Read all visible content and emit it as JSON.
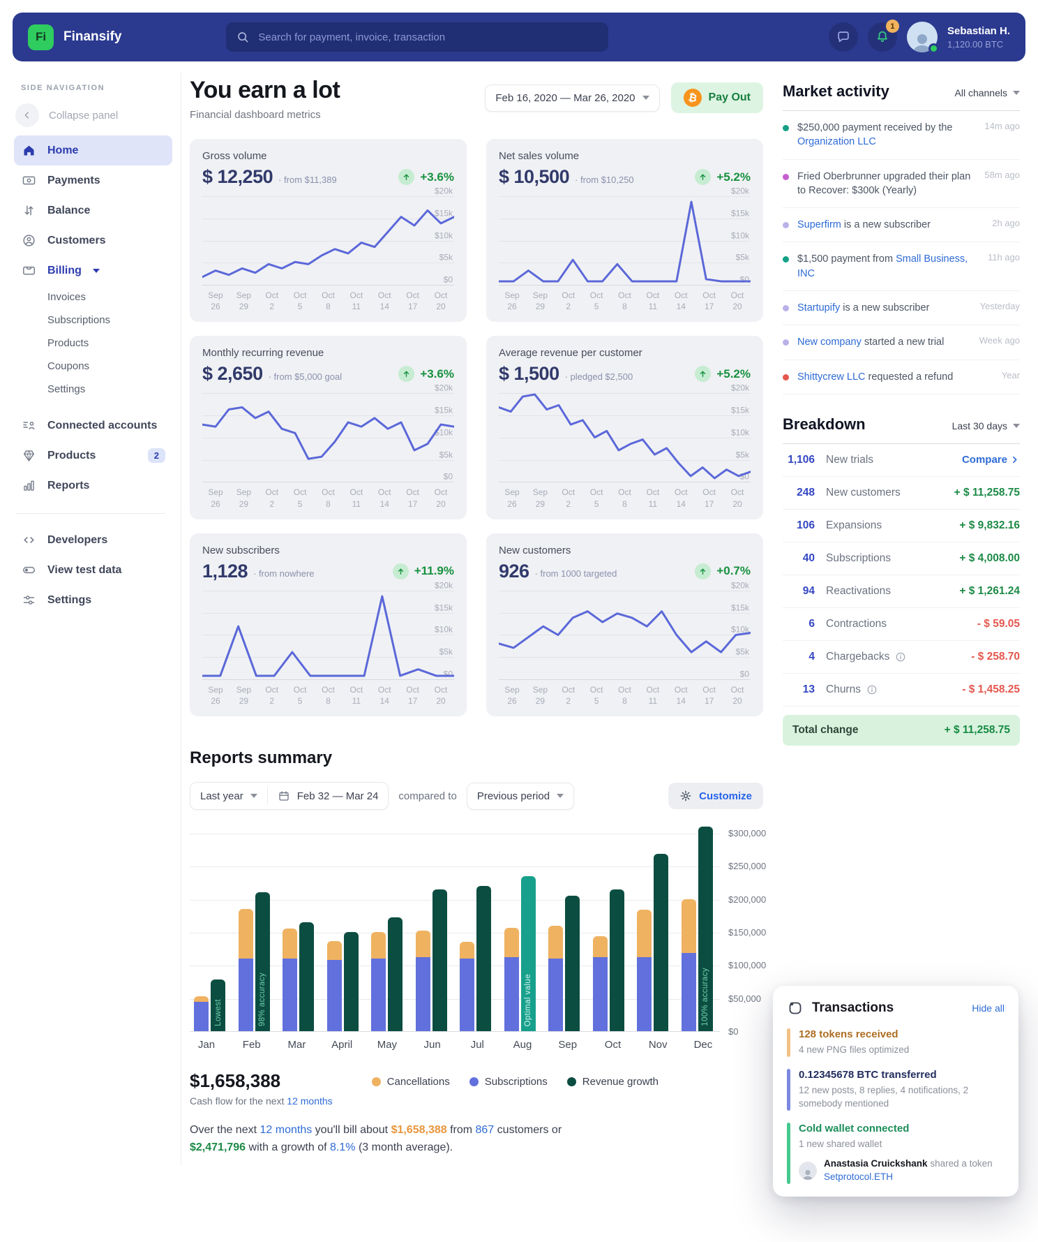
{
  "topbar": {
    "logo_text": "Fi",
    "brand": "Finansify",
    "search_placeholder": "Search for payment, invoice, transaction",
    "notification_count": "1",
    "user_name": "Sebastian H.",
    "user_balance": "1,120.00 BTC"
  },
  "sidebar": {
    "section_label": "Side navigation",
    "collapse": "Collapse panel",
    "home": "Home",
    "payments": "Payments",
    "balance": "Balance",
    "customers": "Customers",
    "billing": "Billing",
    "billing_children": [
      "Invoices",
      "Subscriptions",
      "Products",
      "Coupons",
      "Settings"
    ],
    "connected": "Connected accounts",
    "products": "Products",
    "products_badge": "2",
    "reports": "Reports",
    "developers": "Developers",
    "view_test_data": "View test data",
    "settings": "Settings"
  },
  "header": {
    "title": "You earn a lot",
    "subtitle": "Financial dashboard metrics",
    "date_range": "Feb 16, 2020 — Mar 26, 2020",
    "payout_label": "Pay Out",
    "payout_icon": "₿"
  },
  "metrics": {
    "cards": [
      {
        "title": "Gross volume",
        "value": "$ 12,250",
        "note": "· from $11,389",
        "change": "+3.6%"
      },
      {
        "title": "Net sales volume",
        "value": "$ 10,500",
        "note": "· from $10,250",
        "change": "+5.2%"
      },
      {
        "title": "Monthly recurring revenue",
        "value": "$ 2,650",
        "note": "· from $5,000 goal",
        "change": "+3.6%"
      },
      {
        "title": "Average revenue per customer",
        "value": "$ 1,500",
        "note": "· pledged $2,500",
        "change": "+5.2%"
      },
      {
        "title": "New subscribers",
        "value": "1,128",
        "note": "· from nowhere",
        "change": "+11.9%"
      },
      {
        "title": "New customers",
        "value": "926",
        "note": "· from 1000 targeted",
        "change": "+0.7%"
      }
    ]
  },
  "market": {
    "title": "Market activity",
    "filter": "All channels",
    "items": [
      {
        "dot": "#14a085",
        "pre": "$250,000 payment received by the ",
        "link": "Organization LLC",
        "post": "",
        "time": "14m ago"
      },
      {
        "dot": "#c65fd0",
        "pre": "Fried Oberbrunner upgraded their plan to Recover: $300k (Yearly)",
        "link": "",
        "post": "",
        "time": "58m ago"
      },
      {
        "dot": "#b9b2e8",
        "pre": "",
        "link": "Superfirm",
        "post": " is a new subscriber",
        "time": "2h ago"
      },
      {
        "dot": "#14a085",
        "pre": "$1,500 payment from ",
        "link": "Small Business, INC",
        "post": "",
        "time": "11h ago"
      },
      {
        "dot": "#b9b2e8",
        "pre": "",
        "link": "Startupify",
        "post": " is a new subscriber",
        "time": "Yesterday"
      },
      {
        "dot": "#b9b2e8",
        "pre": "",
        "link": "New company",
        "post": " started a new trial",
        "time": "Week ago"
      },
      {
        "dot": "#e4574e",
        "pre": "",
        "link": "Shittycrew LLC",
        "post": " requested a refund",
        "time": "Year"
      }
    ]
  },
  "breakdown": {
    "title": "Breakdown",
    "filter": "Last 30 days",
    "compare_label": "Compare",
    "rows": [
      {
        "count": "1,106",
        "label": "New trials",
        "amount": ""
      },
      {
        "count": "248",
        "label": "New customers",
        "amount": "+ $ 11,258.75"
      },
      {
        "count": "106",
        "label": "Expansions",
        "amount": "+ $ 9,832.16"
      },
      {
        "count": "40",
        "label": "Subscriptions",
        "amount": "+ $ 4,008.00"
      },
      {
        "count": "94",
        "label": "Reactivations",
        "amount": "+ $ 1,261.24"
      },
      {
        "count": "6",
        "label": "Contractions",
        "amount": "- $ 59.05"
      },
      {
        "count": "4",
        "label": "Chargebacks",
        "amount": "- $ 258.70"
      },
      {
        "count": "13",
        "label": "Churns",
        "amount": "- $ 1,458.25"
      }
    ],
    "total_label": "Total change",
    "total_amount": "+ $ 11,258.75"
  },
  "reports": {
    "title": "Reports summary",
    "range": "Last year",
    "date": "Feb 32 — Mar 24",
    "compared": "compared to",
    "period": "Previous period",
    "customize": "Customize",
    "total": "$1,658,388",
    "caption_pre": "Cash flow for the next ",
    "caption_link": "12 months",
    "legend": [
      {
        "label": "Cancellations",
        "color": "#efb261"
      },
      {
        "label": "Subscriptions",
        "color": "#6170dc"
      },
      {
        "label": "Revenue growth",
        "color": "#0c4d41"
      }
    ],
    "forecast": {
      "p1": "Over the next ",
      "p2": "12 months",
      "p3": " you'll bill about ",
      "p4": "$1,658,388",
      "p5": " from ",
      "p6": "867",
      "p7": " customers or ",
      "p8": "$2,471,796",
      "p9": " with a growth of ",
      "p10": "8.1%",
      "p11": " (3 month average)."
    }
  },
  "transactions": {
    "title": "Transactions",
    "hide_all": "Hide all",
    "items": [
      {
        "bar": "#f2c186",
        "title": "128 tokens received",
        "title_color": "#ad6d22",
        "sub": "4 new PNG files optimized"
      },
      {
        "bar": "#7b88e0",
        "title": "0.12345678 BTC transferred",
        "title_color": "#232d5e",
        "sub": "12 new posts, 8 replies, 4 notifications, 2 somebody mentioned"
      },
      {
        "bar": "#45c98e",
        "title": "Cold wallet connected",
        "title_color": "#1b8e5a",
        "sub": "1 new shared wallet"
      }
    ],
    "mention": {
      "name": "Anastasia Cruickshank",
      "action": " shared a token ",
      "link": "Setprotocol.ETH"
    }
  },
  "chart_data": [
    {
      "type": "line",
      "title": "Gross volume",
      "line_color": "#5b68d9",
      "x_ticks": [
        "Sep 26",
        "Sep 29",
        "Oct 2",
        "Oct 5",
        "Oct 8",
        "Oct 11",
        "Oct 14",
        "Oct 17",
        "Oct 20"
      ],
      "y_ticks": [
        "$20k",
        "$15k",
        "$10k",
        "$5k",
        "$0"
      ],
      "ylim": [
        0,
        20000
      ],
      "values": [
        1500,
        3000,
        2000,
        3500,
        2500,
        4500,
        3500,
        5000,
        4500,
        6500,
        8000,
        7000,
        9500,
        8500,
        12000,
        15500,
        13500,
        17000,
        14000,
        15500
      ]
    },
    {
      "type": "line",
      "title": "Net sales volume",
      "line_color": "#5b68d9",
      "x_ticks": [
        "Sep 26",
        "Sep 29",
        "Oct 2",
        "Oct 5",
        "Oct 8",
        "Oct 11",
        "Oct 14",
        "Oct 17",
        "Oct 20"
      ],
      "y_ticks": [
        "$20k",
        "$15k",
        "$10k",
        "$5k",
        "$0"
      ],
      "ylim": [
        0,
        20000
      ],
      "values": [
        500,
        500,
        3000,
        500,
        500,
        5500,
        500,
        500,
        4500,
        500,
        500,
        500,
        500,
        19000,
        1000,
        500,
        500,
        500
      ]
    },
    {
      "type": "line",
      "title": "Monthly recurring revenue",
      "line_color": "#5b68d9",
      "x_ticks": [
        "Sep 26",
        "Sep 29",
        "Oct 2",
        "Oct 5",
        "Oct 8",
        "Oct 11",
        "Oct 14",
        "Oct 17",
        "Oct 20"
      ],
      "y_ticks": [
        "$20k",
        "$15k",
        "$10k",
        "$5k",
        "$0"
      ],
      "ylim": [
        0,
        20000
      ],
      "values": [
        13000,
        12500,
        16500,
        17000,
        14500,
        16000,
        12000,
        11000,
        5000,
        5500,
        9000,
        13500,
        12500,
        14500,
        12000,
        13500,
        7000,
        8500,
        13000,
        12500
      ]
    },
    {
      "type": "line",
      "title": "Average revenue per customer",
      "line_color": "#5b68d9",
      "x_ticks": [
        "Sep 26",
        "Sep 29",
        "Oct 2",
        "Oct 5",
        "Oct 8",
        "Oct 11",
        "Oct 14",
        "Oct 17",
        "Oct 20"
      ],
      "y_ticks": [
        "$20k",
        "$15k",
        "$10k",
        "$5k",
        "$0"
      ],
      "ylim": [
        0,
        20000
      ],
      "values": [
        17000,
        16000,
        19500,
        20000,
        16500,
        17500,
        13000,
        14000,
        10000,
        11500,
        7000,
        8500,
        9500,
        6000,
        7500,
        4000,
        1000,
        3000,
        500,
        2500,
        1000,
        2000
      ]
    },
    {
      "type": "line",
      "title": "New subscribers",
      "line_color": "#5b68d9",
      "x_ticks": [
        "Sep 26",
        "Sep 29",
        "Oct 2",
        "Oct 5",
        "Oct 8",
        "Oct 11",
        "Oct 14",
        "Oct 17",
        "Oct 20"
      ],
      "y_ticks": [
        "$20k",
        "$15k",
        "$10k",
        "$5k",
        "$0"
      ],
      "ylim": [
        0,
        20000
      ],
      "values": [
        500,
        500,
        12000,
        500,
        500,
        6000,
        500,
        500,
        500,
        500,
        19000,
        500,
        2000,
        500,
        500
      ]
    },
    {
      "type": "line",
      "title": "New customers",
      "line_color": "#5b68d9",
      "x_ticks": [
        "Sep 26",
        "Sep 29",
        "Oct 2",
        "Oct 5",
        "Oct 8",
        "Oct 11",
        "Oct 14",
        "Oct 17",
        "Oct 20"
      ],
      "y_ticks": [
        "$20k",
        "$15k",
        "$10k",
        "$5k",
        "$0"
      ],
      "ylim": [
        0,
        20000
      ],
      "values": [
        8000,
        7000,
        9500,
        12000,
        10000,
        14000,
        15500,
        13000,
        15000,
        14000,
        12000,
        15500,
        10000,
        6000,
        8500,
        6000,
        10000,
        10500
      ]
    },
    {
      "type": "bar",
      "title": "Reports summary",
      "categories": [
        "Jan",
        "Feb",
        "Mar",
        "April",
        "May",
        "Jun",
        "Jul",
        "Aug",
        "Sep",
        "Oct",
        "Nov",
        "Dec"
      ],
      "series": [
        {
          "name": "Cancellations",
          "color": "#efb261",
          "values": [
            8000,
            75000,
            45000,
            28000,
            40000,
            40000,
            25000,
            45000,
            50000,
            32000,
            72000,
            82000
          ]
        },
        {
          "name": "Subscriptions",
          "color": "#6170dc",
          "values": [
            45000,
            110000,
            110000,
            108000,
            110000,
            112000,
            110000,
            112000,
            110000,
            112000,
            112000,
            118000
          ]
        },
        {
          "name": "Revenue growth",
          "color": "#0c4d41",
          "values": [
            78000,
            210000,
            165000,
            150000,
            172000,
            215000,
            220000,
            235000,
            205000,
            215000,
            268000,
            310000
          ]
        }
      ],
      "y_ticks": [
        "$0",
        "$50,000",
        "$100,000",
        "$150,000",
        "$200,000",
        "$250,000",
        "$300,000"
      ],
      "ylim": [
        0,
        300000
      ],
      "highlight": {
        "month_index": 7,
        "color": "#17a08c"
      },
      "annotations": [
        {
          "month_index": 0,
          "text": "Lowest"
        },
        {
          "month_index": 1,
          "text": "98% accuracy"
        },
        {
          "month_index": 7,
          "text": "Optimal value"
        },
        {
          "month_index": 11,
          "text": "100% accuracy"
        }
      ]
    }
  ]
}
